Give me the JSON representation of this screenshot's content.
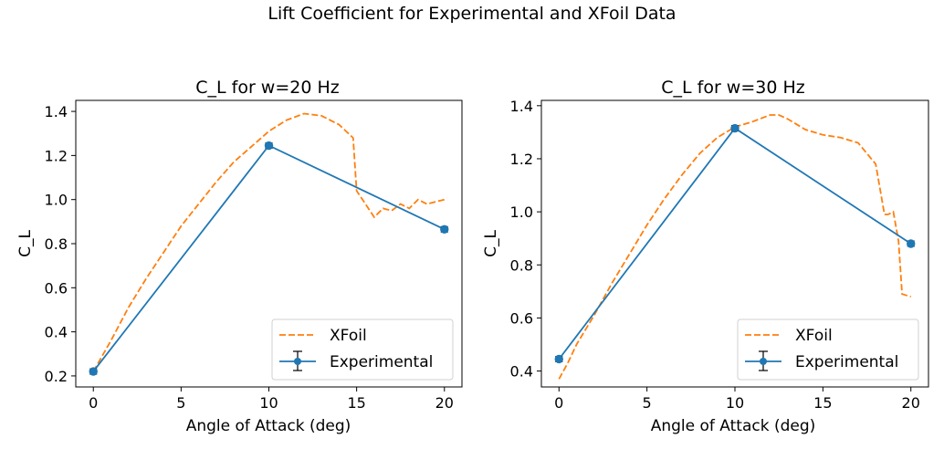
{
  "figure_title": "Lift Coefficient for Experimental and XFoil Data",
  "chart_data": [
    {
      "type": "line",
      "title": "C_L for w=20 Hz",
      "xlabel": "Angle of Attack (deg)",
      "ylabel": "C_L",
      "xlim": [
        -1,
        21
      ],
      "ylim": [
        0.15,
        1.45
      ],
      "xticks": [
        0,
        5,
        10,
        15,
        20
      ],
      "yticks": [
        0.2,
        0.4,
        0.6,
        0.8,
        1.0,
        1.2,
        1.4
      ],
      "xtick_labels": [
        "0",
        "5",
        "10",
        "15",
        "20"
      ],
      "ytick_labels": [
        "0.2",
        "0.4",
        "0.6",
        "0.8",
        "1.0",
        "1.2",
        "1.4"
      ],
      "legend_position": "lower-right",
      "series": [
        {
          "name": "XFoil",
          "style": "dashed",
          "color": "#ff7f0e",
          "x": [
            0,
            1,
            2,
            3,
            4,
            5,
            6,
            7,
            8,
            9,
            10,
            11,
            12,
            13,
            14,
            14.8,
            15,
            15.5,
            16,
            16.5,
            17,
            17.5,
            18,
            18.5,
            19,
            19.5,
            20
          ],
          "y": [
            0.22,
            0.36,
            0.51,
            0.64,
            0.76,
            0.88,
            0.98,
            1.08,
            1.17,
            1.24,
            1.31,
            1.36,
            1.39,
            1.38,
            1.34,
            1.28,
            1.04,
            0.98,
            0.92,
            0.96,
            0.95,
            0.98,
            0.96,
            1.0,
            0.98,
            0.99,
            1.0
          ]
        },
        {
          "name": "Experimental",
          "style": "solid",
          "color": "#1f77b4",
          "marker": "circle",
          "errorbars": true,
          "x": [
            0,
            10,
            20
          ],
          "y": [
            0.22,
            1.245,
            0.865
          ]
        }
      ]
    },
    {
      "type": "line",
      "title": "C_L for w=30 Hz",
      "xlabel": "Angle of Attack (deg)",
      "ylabel": "C_L",
      "xlim": [
        -1,
        21
      ],
      "ylim": [
        0.34,
        1.42
      ],
      "xticks": [
        0,
        5,
        10,
        15,
        20
      ],
      "yticks": [
        0.4,
        0.6,
        0.8,
        1.0,
        1.2,
        1.4
      ],
      "xtick_labels": [
        "0",
        "5",
        "10",
        "15",
        "20"
      ],
      "ytick_labels": [
        "0.4",
        "0.6",
        "0.8",
        "1.0",
        "1.2",
        "1.4"
      ],
      "legend_position": "lower-right",
      "series": [
        {
          "name": "XFoil",
          "style": "dashed",
          "color": "#ff7f0e",
          "x": [
            0,
            0.5,
            1,
            2,
            3,
            4,
            5,
            6,
            7,
            8,
            9,
            10,
            11,
            12,
            12.5,
            13,
            13.5,
            14,
            15,
            16,
            17,
            18,
            18.5,
            18.7,
            19,
            19.3,
            19.5,
            20
          ],
          "y": [
            0.37,
            0.43,
            0.5,
            0.61,
            0.73,
            0.84,
            0.95,
            1.05,
            1.14,
            1.22,
            1.28,
            1.32,
            1.34,
            1.365,
            1.365,
            1.35,
            1.33,
            1.31,
            1.29,
            1.28,
            1.26,
            1.18,
            0.99,
            0.99,
            1.0,
            0.89,
            0.69,
            0.68
          ]
        },
        {
          "name": "Experimental",
          "style": "solid",
          "color": "#1f77b4",
          "marker": "circle",
          "errorbars": true,
          "x": [
            0,
            10,
            20
          ],
          "y": [
            0.445,
            1.315,
            0.88
          ]
        }
      ]
    }
  ]
}
